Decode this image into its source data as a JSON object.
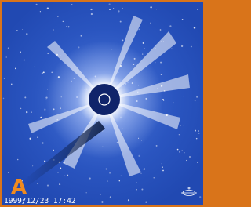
{
  "image": {
    "label": "A",
    "timestamp": "1999/12/23 17:42"
  }
}
